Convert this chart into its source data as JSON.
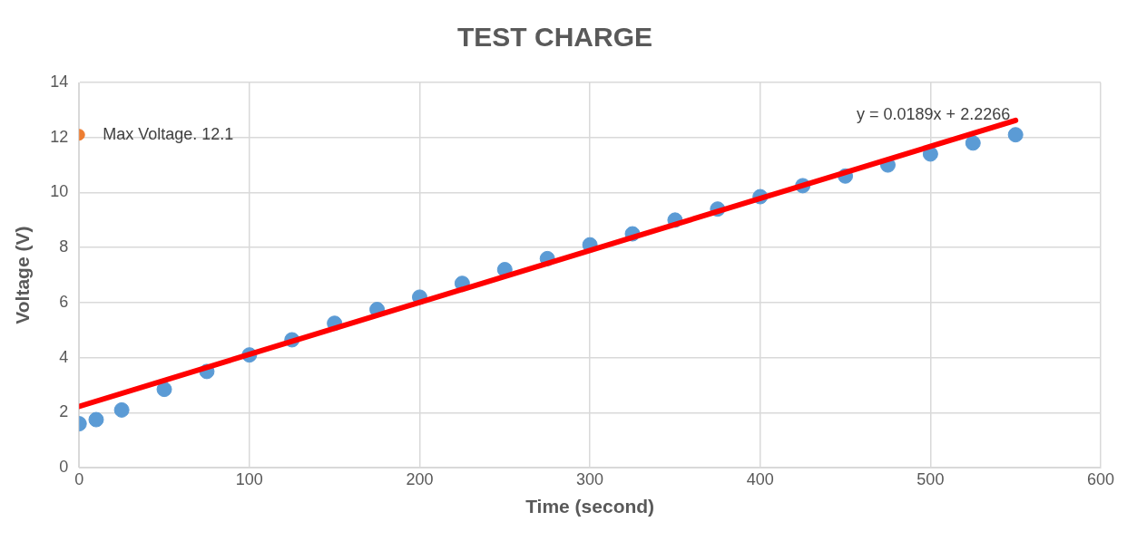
{
  "chart_data": {
    "type": "scatter",
    "title": "TEST CHARGE",
    "xlabel": "Time (second)",
    "ylabel": "Voltage (V)",
    "xlim": [
      0,
      600
    ],
    "xticks": [
      0,
      100,
      200,
      300,
      400,
      500,
      600
    ],
    "ylim": [
      0,
      14
    ],
    "yticks": [
      0,
      2,
      4,
      6,
      8,
      10,
      12,
      14
    ],
    "grid": true,
    "legend": false,
    "series": [
      {
        "marker": "circle",
        "color": "#5b9bd5",
        "x": [
          0,
          10,
          25,
          50,
          75,
          100,
          125,
          150,
          175,
          200,
          225,
          250,
          275,
          300,
          325,
          350,
          375,
          400,
          425,
          450,
          475,
          500,
          525,
          550
        ],
        "values": [
          1.6,
          1.75,
          2.1,
          2.85,
          3.5,
          4.1,
          4.65,
          5.25,
          5.75,
          6.2,
          6.7,
          7.2,
          7.6,
          8.1,
          8.5,
          9.0,
          9.4,
          9.85,
          10.25,
          10.6,
          11.0,
          11.4,
          11.8,
          12.1
        ]
      },
      {
        "type": "line",
        "marker": "none",
        "color": "#ff0000",
        "x": [
          0,
          550
        ],
        "values": [
          2.23,
          12.62
        ]
      },
      {
        "marker": "circle",
        "color": "#ed7d31",
        "x": [
          0
        ],
        "values": [
          12.1
        ]
      }
    ],
    "annotations": [
      {
        "text": "Max Voltage. 12.1",
        "x": 0,
        "y": 12.1
      },
      "y = 0.0189x + 2.2266"
    ]
  }
}
